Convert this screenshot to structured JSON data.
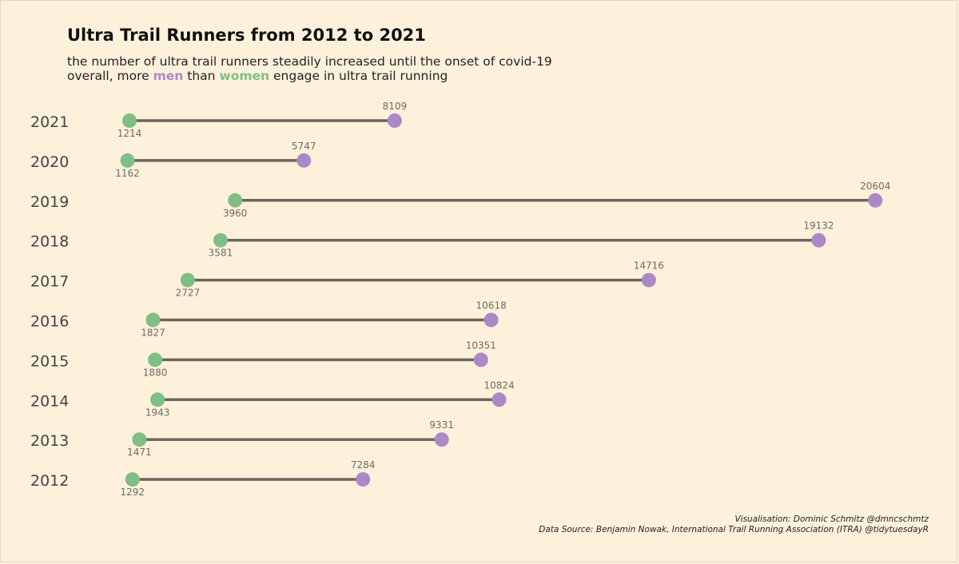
{
  "header": {
    "title": "Ultra Trail Runners from 2012 to 2021",
    "subtitle_line1": "the number of ultra trail runners steadily increased until the onset of covid-19",
    "subtitle_line2_pre": "overall, more ",
    "subtitle_line2_men": "men",
    "subtitle_line2_mid": " than ",
    "subtitle_line2_women": "women",
    "subtitle_line2_post": " engage in ultra trail running"
  },
  "caption": {
    "line1": "Visualisation: Dominic Schmitz @dmncschmtz",
    "line2": "Data Source: Benjamin Nowak, International Trail Running Association (ITRA) @tidytuesdayR"
  },
  "colors": {
    "background": "#fdf1dc",
    "men": "#ad88c6",
    "women": "#7fbe84",
    "segment": "#6b665c",
    "label": "#6f6a62",
    "year_label": "#444444"
  },
  "chart_data": {
    "type": "dumbbell",
    "title": "Ultra Trail Runners from 2012 to 2021",
    "categories": [
      "2021",
      "2020",
      "2019",
      "2018",
      "2017",
      "2016",
      "2015",
      "2014",
      "2013",
      "2012"
    ],
    "series": [
      {
        "name": "women",
        "values": [
          1214,
          1162,
          3960,
          3581,
          2727,
          1827,
          1880,
          1943,
          1471,
          1292
        ]
      },
      {
        "name": "men",
        "values": [
          8109,
          5747,
          20604,
          19132,
          14716,
          10618,
          10351,
          10824,
          9331,
          7284
        ]
      }
    ],
    "xlim": [
      0,
      21000
    ],
    "grid": false,
    "legend": "none"
  }
}
